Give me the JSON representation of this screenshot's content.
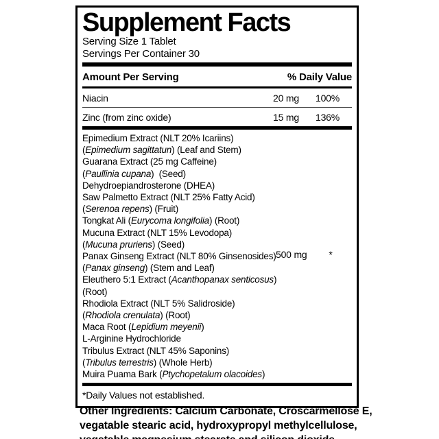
{
  "colors": {
    "ink": "#000000",
    "background": "#ffffff"
  },
  "label": {
    "title": "Supplement Facts",
    "serving_size": "Serving Size 1 Tablet",
    "servings_per_container": "Servings Per Container 30",
    "columns": {
      "amount_header": "Amount Per Serving",
      "dv_header": "% Daily Value"
    },
    "rows": [
      {
        "name": "Niacin",
        "amount": "20 mg",
        "dv": "100%"
      },
      {
        "name": "Zinc (from zinc oxide)",
        "amount": "15 mg",
        "dv": "136%"
      }
    ],
    "blend": {
      "amount": "500 mg",
      "dv": "*",
      "amount_line_index": 10,
      "lines": [
        [
          {
            "text": "Epimedium Extract (NLT 20% Icariins)"
          }
        ],
        [
          {
            "text": "("
          },
          {
            "text": "Epimedium sagittatun",
            "italic": true
          },
          {
            "text": ") (Leaf and Stem)"
          }
        ],
        [
          {
            "text": "Guarana Extract (25 mg Caffeine)"
          }
        ],
        [
          {
            "text": "("
          },
          {
            "text": "Paullinia cupana",
            "italic": true
          },
          {
            "text": ")  (Seed)"
          }
        ],
        [
          {
            "text": "Dehydroepiandrosterone (DHEA)"
          }
        ],
        [
          {
            "text": "Saw Palmetto Extract (NLT 25% Fatty Acid)"
          }
        ],
        [
          {
            "text": "("
          },
          {
            "text": "Serenoa repens",
            "italic": true
          },
          {
            "text": ") (Fruit)"
          }
        ],
        [
          {
            "text": "Tongkat Ali ("
          },
          {
            "text": "Eurycoma longifolia",
            "italic": true
          },
          {
            "text": ") (Root)"
          }
        ],
        [
          {
            "text": "Mucuna Extract (NLT 15% Levodopa)"
          }
        ],
        [
          {
            "text": "("
          },
          {
            "text": "Mucuna pruriens",
            "italic": true
          },
          {
            "text": ") (Seed)"
          }
        ],
        [
          {
            "text": "Panax Ginseng Extract (NLT 80% Ginsenosides)"
          }
        ],
        [
          {
            "text": "("
          },
          {
            "text": "Panax ginseng",
            "italic": true
          },
          {
            "text": ") (Stem and Leaf)"
          }
        ],
        [
          {
            "text": "Eleuthero 5:1 Extract ("
          },
          {
            "text": "Acanthopanax senticosus",
            "italic": true
          },
          {
            "text": ")"
          }
        ],
        [
          {
            "text": "(Root)"
          }
        ],
        [
          {
            "text": "Rhodiola Extract (NLT 5% Salidroside)"
          }
        ],
        [
          {
            "text": "("
          },
          {
            "text": "Rhodiola crenulata",
            "italic": true
          },
          {
            "text": ") (Root)"
          }
        ],
        [
          {
            "text": "Maca Root ("
          },
          {
            "text": "Lepidium meyenii",
            "italic": true
          },
          {
            "text": ")"
          }
        ],
        [
          {
            "text": "L-Arginine Hydrochloride"
          }
        ],
        [
          {
            "text": "Tribulus Extract (NLT 45% Saponins)"
          }
        ],
        [
          {
            "text": "("
          },
          {
            "text": "Tribulus terrestris",
            "italic": true
          },
          {
            "text": ") (Whole Herb)"
          }
        ],
        [
          {
            "text": "Muira Puama Bark ("
          },
          {
            "text": "Ptychopetalum olacoides",
            "italic": true
          },
          {
            "text": ")"
          }
        ]
      ]
    },
    "footnote": "*Daily Values not established."
  },
  "other_ingredients": {
    "full_text": "Other Ingredients: Calcium Carbonate, Croscarmellose E, vegatable stearic acid, hydroxypropyl methylcellulose, vegatable magnesium stearate and silicon dioxide",
    "lines": [
      "Other Ingredients: Calcium Carbonate, Croscarmellose E,",
      "vegatable stearic acid, hydroxypropyl methylcellulose,",
      "vegatable magnesium stearate and silicon dioxide"
    ]
  }
}
